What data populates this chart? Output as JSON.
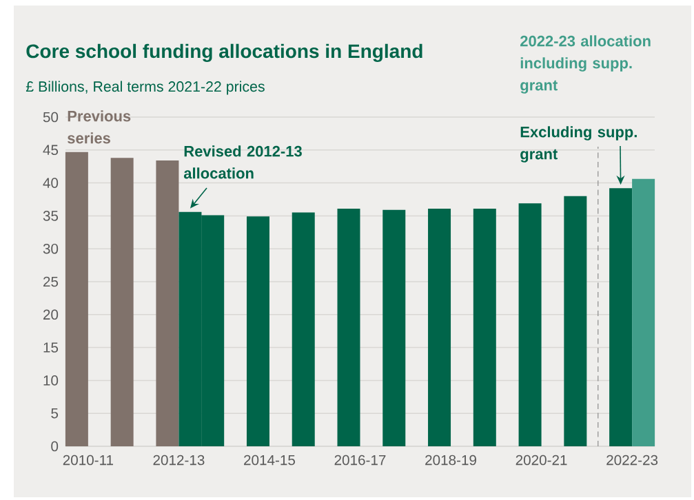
{
  "chart_data": {
    "type": "bar",
    "title": "Core school funding allocations in England",
    "subtitle": "£ Billions, Real terms 2021-22 prices",
    "categories": [
      "2010-11",
      null,
      "2012-13",
      null,
      "2014-15",
      null,
      "2016-17",
      null,
      "2018-19",
      null,
      "2020-21",
      null,
      "2022-23"
    ],
    "series": [
      {
        "colors": [
          "#80726b",
          "#80726b",
          "#80726b",
          "#00654a",
          "#00654a",
          "#00654a",
          "#00654a",
          "#00654a",
          "#00654a",
          "#00654a",
          "#00654a",
          "#00654a",
          "#00654a"
        ],
        "values": [
          44.7,
          43.8,
          43.4,
          35.1,
          34.9,
          35.5,
          36.1,
          35.9,
          36.1,
          36.1,
          36.9,
          38.0,
          39.2
        ]
      },
      {
        "colors": [
          null,
          null,
          "#00654a",
          null,
          null,
          null,
          null,
          null,
          null,
          null,
          null,
          null,
          "#419e8a"
        ],
        "values": [
          null,
          null,
          35.6,
          null,
          null,
          null,
          null,
          null,
          null,
          null,
          null,
          null,
          40.6
        ]
      }
    ],
    "ylim": [
      0,
      50
    ],
    "yticks": [
      0,
      5,
      10,
      15,
      20,
      25,
      30,
      35,
      40,
      45,
      50
    ],
    "grid": "y",
    "annotations": [
      "Previous series",
      {
        "text": "Revised 2012-13 allocation",
        "x": "2012-13",
        "y": 35.6
      },
      "2022-23 allocation including supp. grant",
      {
        "text": "Excluding supp. grant",
        "x": "2022-23",
        "y": 39.2
      }
    ]
  }
}
